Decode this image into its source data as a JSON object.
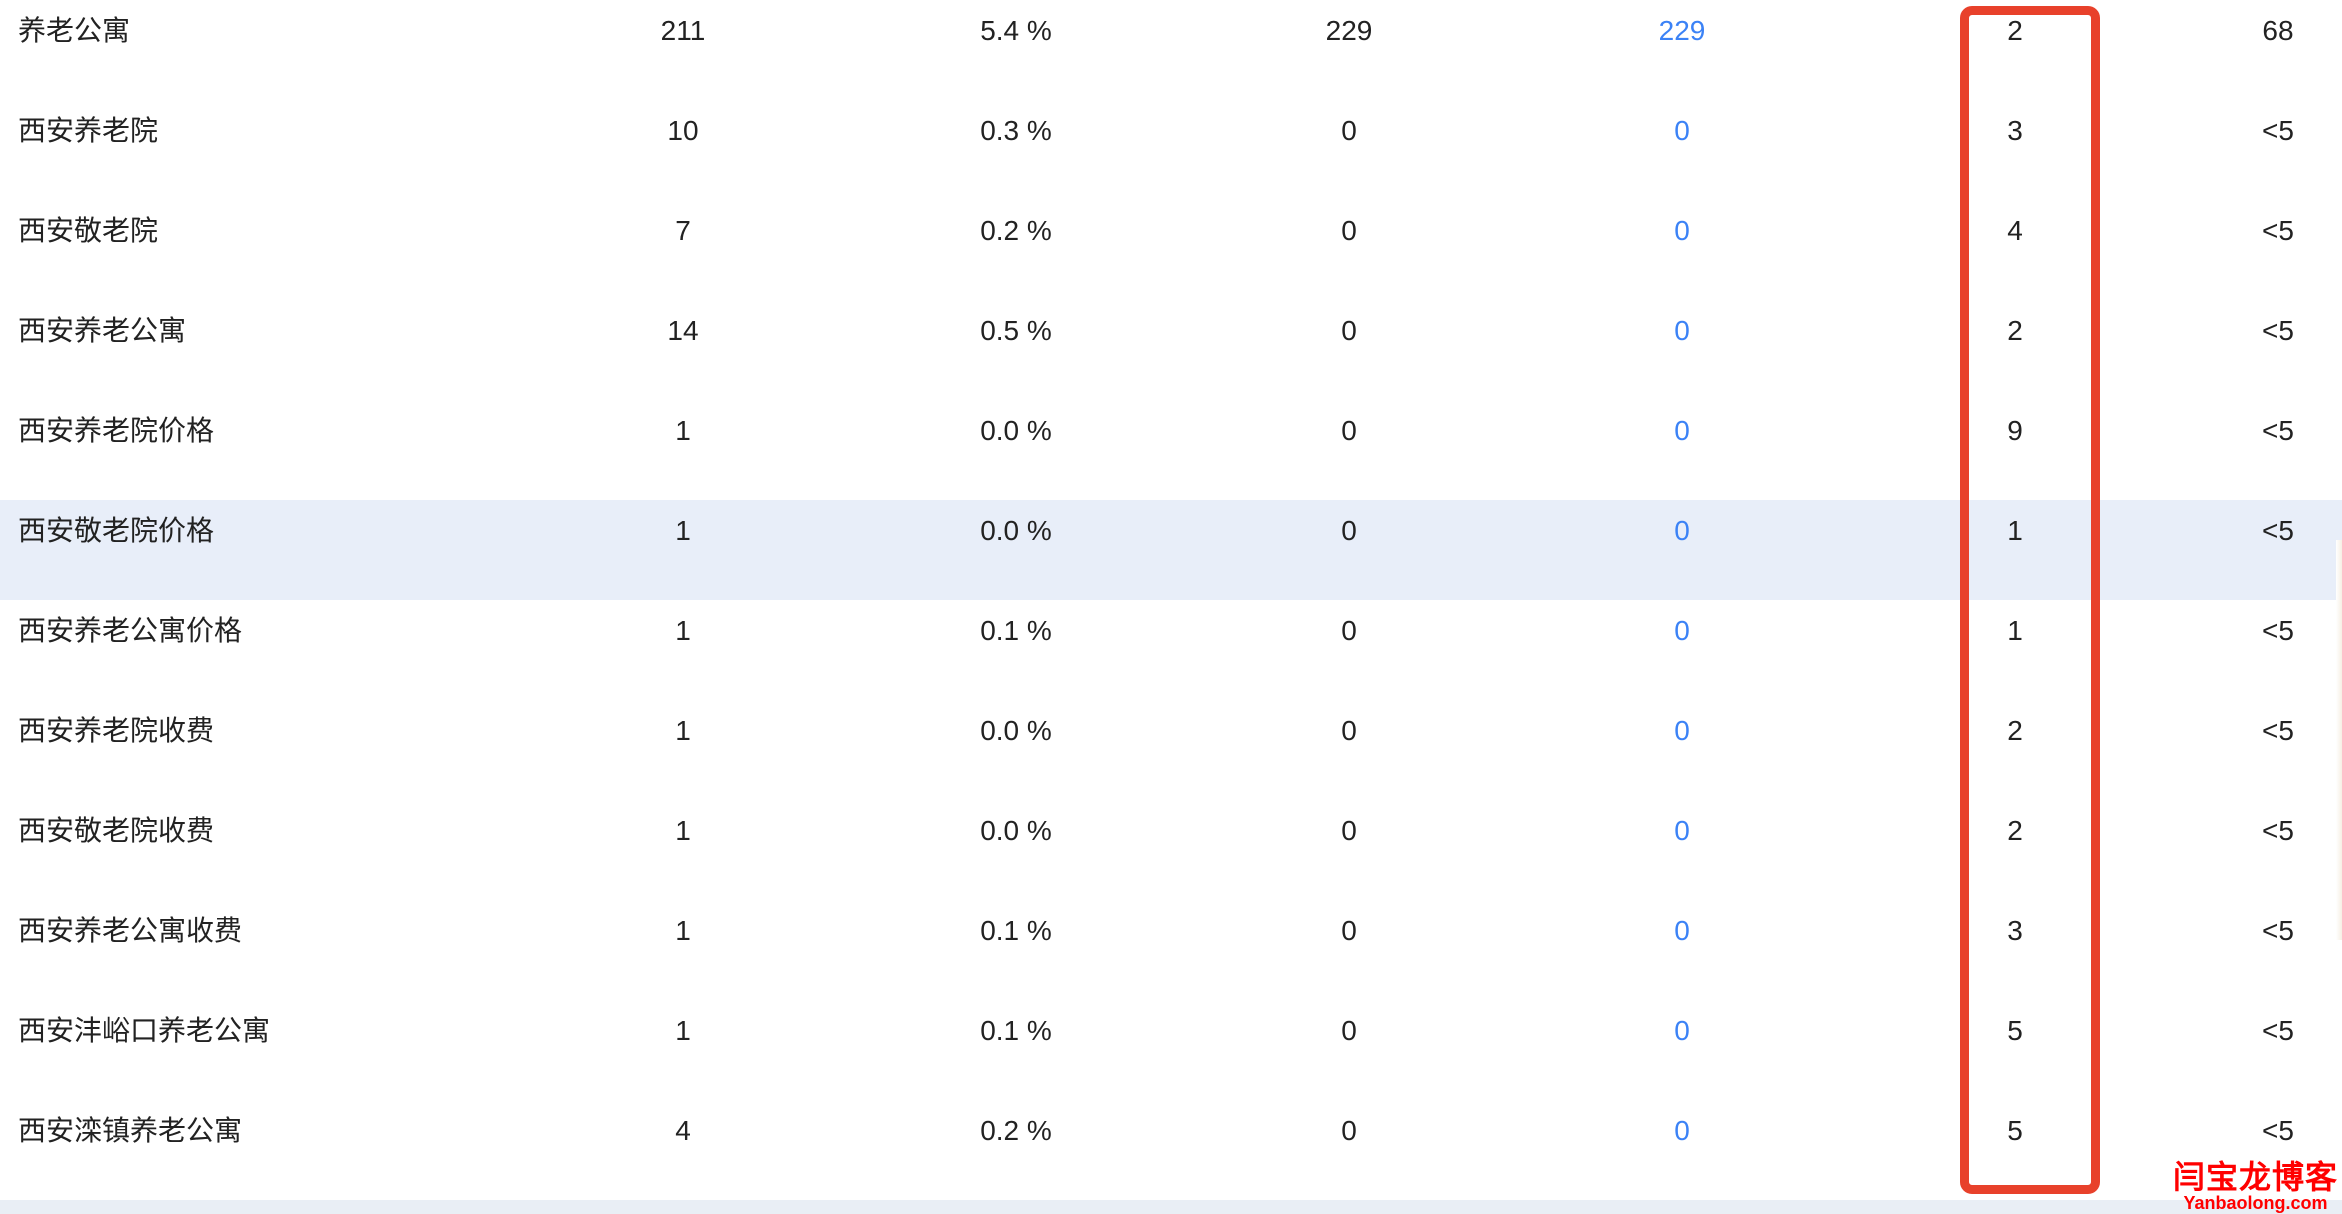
{
  "rows": [
    {
      "keyword": "养老公寓",
      "c1": "211",
      "c2": "5.4 %",
      "c3": "229",
      "c4": "229",
      "c5": "2",
      "c6": "68"
    },
    {
      "keyword": "西安养老院",
      "c1": "10",
      "c2": "0.3 %",
      "c3": "0",
      "c4": "0",
      "c5": "3",
      "c6": "<5"
    },
    {
      "keyword": "西安敬老院",
      "c1": "7",
      "c2": "0.2 %",
      "c3": "0",
      "c4": "0",
      "c5": "4",
      "c6": "<5"
    },
    {
      "keyword": "西安养老公寓",
      "c1": "14",
      "c2": "0.5 %",
      "c3": "0",
      "c4": "0",
      "c5": "2",
      "c6": "<5"
    },
    {
      "keyword": "西安养老院价格",
      "c1": "1",
      "c2": "0.0 %",
      "c3": "0",
      "c4": "0",
      "c5": "9",
      "c6": "<5"
    },
    {
      "keyword": "西安敬老院价格",
      "c1": "1",
      "c2": "0.0 %",
      "c3": "0",
      "c4": "0",
      "c5": "1",
      "c6": "<5"
    },
    {
      "keyword": "西安养老公寓价格",
      "c1": "1",
      "c2": "0.1 %",
      "c3": "0",
      "c4": "0",
      "c5": "1",
      "c6": "<5"
    },
    {
      "keyword": "西安养老院收费",
      "c1": "1",
      "c2": "0.0 %",
      "c3": "0",
      "c4": "0",
      "c5": "2",
      "c6": "<5"
    },
    {
      "keyword": "西安敬老院收费",
      "c1": "1",
      "c2": "0.0 %",
      "c3": "0",
      "c4": "0",
      "c5": "2",
      "c6": "<5"
    },
    {
      "keyword": "西安养老公寓收费",
      "c1": "1",
      "c2": "0.1 %",
      "c3": "0",
      "c4": "0",
      "c5": "3",
      "c6": "<5"
    },
    {
      "keyword": "西安沣峪口养老公寓",
      "c1": "1",
      "c2": "0.1 %",
      "c3": "0",
      "c4": "0",
      "c5": "5",
      "c6": "<5"
    },
    {
      "keyword": "西安滦镇养老公寓",
      "c1": "4",
      "c2": "0.2 %",
      "c3": "0",
      "c4": "0",
      "c5": "5",
      "c6": "<5"
    }
  ],
  "highlighted_row": 5,
  "colors": {
    "link": "#3b82f6",
    "highlight_box": "#e8412b",
    "row_highlight": "#e8eef9"
  },
  "watermark": {
    "title": "闫宝龙博客",
    "url": "Yanbaolong.com"
  }
}
